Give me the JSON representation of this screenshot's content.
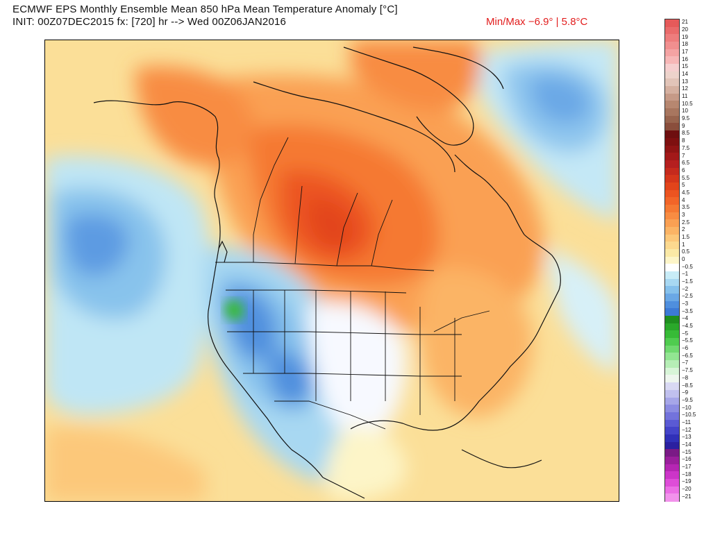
{
  "header": {
    "title_line1": "ECMWF EPS Monthly Ensemble Mean 850 hPa Mean Temperature Anomaly [°C]",
    "title_line2": "INIT: 00Z07DEC2015 fx: [720] hr --> Wed 00Z06JAN2016",
    "minmax_text": "Min/Max  −6.9°  |   5.8°C"
  },
  "map": {
    "region": "North America",
    "variable": "850 hPa Mean Temperature Anomaly"
  },
  "colorbar": {
    "levels": [
      {
        "label": "21",
        "color": "#e65a5a"
      },
      {
        "label": "20",
        "color": "#ea6b6b"
      },
      {
        "label": "19",
        "color": "#ee7d7d"
      },
      {
        "label": "18",
        "color": "#f18f8f"
      },
      {
        "label": "17",
        "color": "#f4a3a3"
      },
      {
        "label": "16",
        "color": "#f7b7b7"
      },
      {
        "label": "15",
        "color": "#f6cfcf"
      },
      {
        "label": "14",
        "color": "#edd3cb"
      },
      {
        "label": "13",
        "color": "#e2c4b8"
      },
      {
        "label": "12",
        "color": "#d5b0a0"
      },
      {
        "label": "11",
        "color": "#c69a87"
      },
      {
        "label": "10.5",
        "color": "#b78770"
      },
      {
        "label": "10",
        "color": "#a8765f"
      },
      {
        "label": "9.5",
        "color": "#98644e"
      },
      {
        "label": "9",
        "color": "#8a4e3c"
      },
      {
        "label": "8.5",
        "color": "#6e0f0f"
      },
      {
        "label": "8",
        "color": "#7e1010"
      },
      {
        "label": "7.5",
        "color": "#901414"
      },
      {
        "label": "7",
        "color": "#a31919"
      },
      {
        "label": "6.5",
        "color": "#b51f1f"
      },
      {
        "label": "6",
        "color": "#c52a1d"
      },
      {
        "label": "5.5",
        "color": "#d5361b"
      },
      {
        "label": "5",
        "color": "#e2441b"
      },
      {
        "label": "4.5",
        "color": "#ec5420"
      },
      {
        "label": "4",
        "color": "#f26528"
      },
      {
        "label": "3.5",
        "color": "#f57933"
      },
      {
        "label": "3",
        "color": "#f88c42"
      },
      {
        "label": "2.5",
        "color": "#faa053"
      },
      {
        "label": "2",
        "color": "#fbb465"
      },
      {
        "label": "1.5",
        "color": "#fcc87a"
      },
      {
        "label": "1",
        "color": "#fcd98f"
      },
      {
        "label": "0.5",
        "color": "#fbe9a6"
      },
      {
        "label": "0",
        "color": "#fdf5c8"
      },
      {
        "label": "−0.5",
        "color": "#ffffff"
      },
      {
        "label": "−1",
        "color": "#c8ecf7"
      },
      {
        "label": "−1.5",
        "color": "#a8d8f2"
      },
      {
        "label": "−2",
        "color": "#86c1ec"
      },
      {
        "label": "−2.5",
        "color": "#6aa8e6"
      },
      {
        "label": "−3",
        "color": "#4f8fde"
      },
      {
        "label": "−3.5",
        "color": "#3c7ad6"
      },
      {
        "label": "−4",
        "color": "#1f8f1f"
      },
      {
        "label": "−4.5",
        "color": "#2aa82a"
      },
      {
        "label": "−5",
        "color": "#37bb37"
      },
      {
        "label": "−5.5",
        "color": "#4fcc4f"
      },
      {
        "label": "−6",
        "color": "#6fd96f"
      },
      {
        "label": "−6.5",
        "color": "#92e592"
      },
      {
        "label": "−7",
        "color": "#b6eeb6"
      },
      {
        "label": "−7.5",
        "color": "#d8f5d8"
      },
      {
        "label": "−8",
        "color": "#eef6ee"
      },
      {
        "label": "−8.5",
        "color": "#d9d9f3"
      },
      {
        "label": "−9",
        "color": "#c0c0ee"
      },
      {
        "label": "−9.5",
        "color": "#a6a6e8"
      },
      {
        "label": "−10",
        "color": "#8c8ce2"
      },
      {
        "label": "−10.5",
        "color": "#7373dc"
      },
      {
        "label": "−11",
        "color": "#5a5ad4"
      },
      {
        "label": "−12",
        "color": "#4444c9"
      },
      {
        "label": "−13",
        "color": "#3030b8"
      },
      {
        "label": "−14",
        "color": "#2a20a0"
      },
      {
        "label": "−15",
        "color": "#7a1a86"
      },
      {
        "label": "−16",
        "color": "#9a1f9c"
      },
      {
        "label": "−17",
        "color": "#b526b3"
      },
      {
        "label": "−18",
        "color": "#cc35c8"
      },
      {
        "label": "−19",
        "color": "#de4dd8"
      },
      {
        "label": "−20",
        "color": "#eb6ee5"
      },
      {
        "label": "−21",
        "color": "#f292ec"
      }
    ]
  }
}
